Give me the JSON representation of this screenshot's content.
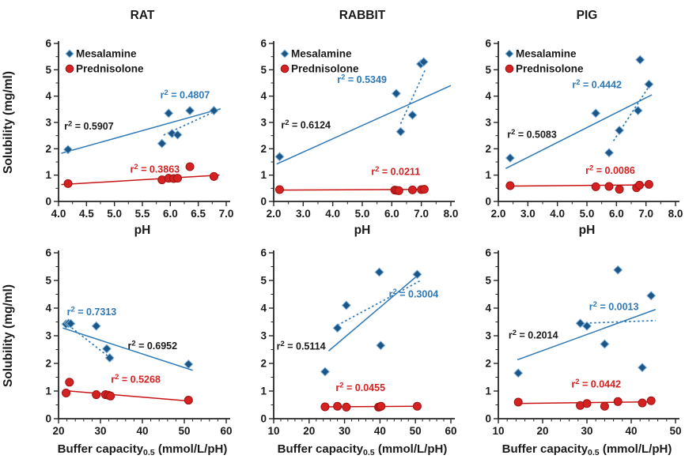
{
  "style": {
    "mesalamine_marker": "#1C5687",
    "mesalamine_marker_edge": "#7FB2DC",
    "mesalamine_line": "#2E79B8",
    "prednisolone_marker": "#D42222",
    "prednisolone_marker_edge": "#9E1212",
    "prednisolone_line": "#C81414",
    "annotation_black": "#1a1a1a",
    "axis_color": "#262626",
    "text_color": "#1a1a1a"
  },
  "chart_data": [
    {
      "type": "scatter",
      "title": "RAT",
      "xlabel": "pH",
      "ylabel": "Solubility (mg/ml)",
      "xlim": [
        4.0,
        7.0
      ],
      "xtick_vals": [
        4.0,
        4.5,
        5.0,
        5.5,
        6.0,
        6.5,
        7.0
      ],
      "xtick_labels": [
        "4.0",
        "4.5",
        "5.0",
        "5.5",
        "6.0",
        "6.5",
        "7.0"
      ],
      "x_minor_step": 0.25,
      "ylim": [
        0,
        6
      ],
      "ytick_vals": [
        0,
        1,
        2,
        3,
        4,
        5,
        6
      ],
      "ytick_labels": [
        "0",
        "1",
        "2",
        "3",
        "4",
        "5",
        "6"
      ],
      "y_minor_step": 0.5,
      "show_legend": true,
      "series": [
        {
          "name": "Mesalamine",
          "marker": "diamond",
          "color": "#1C5687",
          "edge": "#7FB2DC",
          "points": [
            [
              4.17,
              1.97
            ],
            [
              5.85,
              2.2
            ],
            [
              5.97,
              3.35
            ],
            [
              6.03,
              2.58
            ],
            [
              6.13,
              2.53
            ],
            [
              6.35,
              3.45
            ],
            [
              6.78,
              3.45
            ]
          ]
        },
        {
          "name": "Prednisolone",
          "marker": "circle",
          "color": "#D42222",
          "edge": "#9E1212",
          "points": [
            [
              4.17,
              0.68
            ],
            [
              5.85,
              0.82
            ],
            [
              5.97,
              0.88
            ],
            [
              6.06,
              0.87
            ],
            [
              6.13,
              0.88
            ],
            [
              6.35,
              1.32
            ],
            [
              6.78,
              0.95
            ]
          ]
        }
      ],
      "trendlines": [
        {
          "style": "solid",
          "color": "#2E79B8",
          "from": [
            4.05,
            1.83
          ],
          "to": [
            6.9,
            3.52
          ]
        },
        {
          "style": "dotted",
          "color": "#2E79B8",
          "from": [
            5.88,
            2.52
          ],
          "to": [
            6.88,
            3.5
          ]
        },
        {
          "style": "solid",
          "color": "#C81414",
          "from": [
            4.05,
            0.64
          ],
          "to": [
            6.88,
            1.0
          ]
        }
      ],
      "annotations": [
        {
          "text": "r² = 0.5907",
          "color": "#1a1a1a",
          "x": 4.1,
          "y": 2.73
        },
        {
          "text": "r² = 0.4807",
          "color": "#2E79B8",
          "x": 5.82,
          "y": 3.92
        },
        {
          "text": "r² = 0.3863",
          "color": "#D42222",
          "x": 5.28,
          "y": 1.1
        }
      ]
    },
    {
      "type": "scatter",
      "title": "RABBIT",
      "xlabel": "pH",
      "ylabel": "",
      "xlim": [
        2.0,
        8.0
      ],
      "xtick_vals": [
        2.0,
        3.0,
        4.0,
        5.0,
        6.0,
        7.0,
        8.0
      ],
      "xtick_labels": [
        "2.0",
        "3.0",
        "4.0",
        "5.0",
        "6.0",
        "7.0",
        "8.0"
      ],
      "x_minor_step": 0.5,
      "ylim": [
        0,
        6
      ],
      "ytick_vals": [
        0,
        1,
        2,
        3,
        4,
        5,
        6
      ],
      "ytick_labels": [
        "0",
        "1",
        "2",
        "3",
        "4",
        "5",
        "6"
      ],
      "y_minor_step": 0.5,
      "show_legend": true,
      "series": [
        {
          "name": "Mesalamine",
          "marker": "diamond",
          "color": "#1C5687",
          "edge": "#7FB2DC",
          "points": [
            [
              2.2,
              1.7
            ],
            [
              6.15,
              4.1
            ],
            [
              6.3,
              2.65
            ],
            [
              6.7,
              3.28
            ],
            [
              6.98,
              5.22
            ],
            [
              7.08,
              5.3
            ]
          ]
        },
        {
          "name": "Prednisolone",
          "marker": "circle",
          "color": "#D42222",
          "edge": "#9E1212",
          "points": [
            [
              2.2,
              0.45
            ],
            [
              6.1,
              0.43
            ],
            [
              6.17,
              0.42
            ],
            [
              6.24,
              0.41
            ],
            [
              6.7,
              0.44
            ],
            [
              7.0,
              0.45
            ],
            [
              7.1,
              0.46
            ]
          ]
        }
      ],
      "trendlines": [
        {
          "style": "solid",
          "color": "#2E79B8",
          "from": [
            2.1,
            1.42
          ],
          "to": [
            8.0,
            4.4
          ]
        },
        {
          "style": "dotted",
          "color": "#2E79B8",
          "from": [
            6.3,
            2.95
          ],
          "to": [
            7.15,
            5.05
          ]
        },
        {
          "style": "solid",
          "color": "#C81414",
          "from": [
            2.1,
            0.43
          ],
          "to": [
            7.15,
            0.46
          ]
        }
      ],
      "annotations": [
        {
          "text": "r² = 0.5349",
          "color": "#2E79B8",
          "x": 4.15,
          "y": 4.5
        },
        {
          "text": "r² = 0.6124",
          "color": "#1a1a1a",
          "x": 2.25,
          "y": 2.78
        },
        {
          "text": "r² = 0.0211",
          "color": "#D42222",
          "x": 5.3,
          "y": 1.0
        }
      ]
    },
    {
      "type": "scatter",
      "title": "PIG",
      "xlabel": "pH",
      "ylabel": "",
      "xlim": [
        2.0,
        8.0
      ],
      "xtick_vals": [
        2.0,
        3.0,
        4.0,
        5.0,
        6.0,
        7.0,
        8.0
      ],
      "xtick_labels": [
        "2.0",
        "3.0",
        "4.0",
        "5.0",
        "6.0",
        "7.0",
        "8.0"
      ],
      "x_minor_step": 0.5,
      "ylim": [
        0,
        6
      ],
      "ytick_vals": [
        0,
        1,
        2,
        3,
        4,
        5,
        6
      ],
      "ytick_labels": [
        "0",
        "1",
        "2",
        "3",
        "4",
        "5",
        "6"
      ],
      "y_minor_step": 0.5,
      "show_legend": true,
      "series": [
        {
          "name": "Mesalamine",
          "marker": "diamond",
          "color": "#1C5687",
          "edge": "#7FB2DC",
          "points": [
            [
              2.4,
              1.65
            ],
            [
              5.3,
              3.35
            ],
            [
              5.75,
              1.85
            ],
            [
              6.1,
              2.7
            ],
            [
              6.73,
              3.45
            ],
            [
              6.8,
              5.38
            ],
            [
              7.1,
              4.45
            ]
          ]
        },
        {
          "name": "Prednisolone",
          "marker": "circle",
          "color": "#D42222",
          "edge": "#9E1212",
          "points": [
            [
              2.4,
              0.6
            ],
            [
              5.3,
              0.56
            ],
            [
              5.75,
              0.57
            ],
            [
              6.1,
              0.46
            ],
            [
              6.68,
              0.52
            ],
            [
              6.78,
              0.62
            ],
            [
              7.1,
              0.65
            ]
          ]
        }
      ],
      "trendlines": [
        {
          "style": "solid",
          "color": "#2E79B8",
          "from": [
            2.25,
            1.25
          ],
          "to": [
            7.2,
            4.05
          ]
        },
        {
          "style": "dotted",
          "color": "#2E79B8",
          "from": [
            5.9,
            2.3
          ],
          "to": [
            7.08,
            4.33
          ]
        },
        {
          "style": "solid",
          "color": "#C81414",
          "from": [
            2.25,
            0.58
          ],
          "to": [
            7.2,
            0.63
          ]
        }
      ],
      "annotations": [
        {
          "text": "r² = 0.4442",
          "color": "#2E79B8",
          "x": 4.5,
          "y": 4.3
        },
        {
          "text": "r² = 0.5083",
          "color": "#1a1a1a",
          "x": 2.3,
          "y": 2.42
        },
        {
          "text": "r² = 0.0086",
          "color": "#D42222",
          "x": 4.95,
          "y": 1.05
        }
      ]
    },
    {
      "type": "scatter",
      "title": "",
      "xlabel": {
        "pre": "Buffer capacity",
        "sub": "0.5",
        "post": " (mmol/L/pH)"
      },
      "ylabel": "Solubility (mg/ml)",
      "xlim": [
        20,
        60
      ],
      "xtick_vals": [
        20,
        30,
        40,
        50,
        60
      ],
      "xtick_labels": [
        "20",
        "30",
        "40",
        "50",
        "60"
      ],
      "x_minor_step": 2,
      "ylim": [
        0,
        6
      ],
      "ytick_vals": [
        0,
        1,
        2,
        3,
        4,
        5,
        6
      ],
      "ytick_labels": [
        "0",
        "1",
        "2",
        "3",
        "4",
        "5",
        "6"
      ],
      "y_minor_step": 0.5,
      "show_legend": false,
      "series": [
        {
          "name": "Mesalamine",
          "marker": "diamond",
          "color": "#1C5687",
          "edge": "#7FB2DC",
          "points": [
            [
              21.8,
              3.42
            ],
            [
              22.4,
              3.45
            ],
            [
              22.9,
              3.44
            ],
            [
              29.0,
              3.35
            ],
            [
              31.5,
              2.53
            ],
            [
              32.2,
              2.2
            ],
            [
              51.0,
              1.97
            ]
          ]
        },
        {
          "name": "Prednisolone",
          "marker": "circle",
          "color": "#D42222",
          "edge": "#9E1212",
          "points": [
            [
              21.8,
              0.93
            ],
            [
              22.6,
              1.32
            ],
            [
              29.0,
              0.87
            ],
            [
              31.2,
              0.87
            ],
            [
              31.9,
              0.85
            ],
            [
              32.4,
              0.82
            ],
            [
              51.0,
              0.67
            ]
          ]
        }
      ],
      "trendlines": [
        {
          "style": "solid",
          "color": "#2E79B8",
          "from": [
            21.0,
            3.28
          ],
          "to": [
            52.0,
            1.75
          ]
        },
        {
          "style": "dotted",
          "color": "#2E79B8",
          "from": [
            21.5,
            3.48
          ],
          "to": [
            33.0,
            2.12
          ]
        },
        {
          "style": "solid",
          "color": "#C81414",
          "from": [
            21.0,
            1.02
          ],
          "to": [
            52.0,
            0.63
          ]
        }
      ],
      "annotations": [
        {
          "text": "r² = 0.7313",
          "color": "#2E79B8",
          "x": 22.0,
          "y": 3.75
        },
        {
          "text": "r² = 0.6952",
          "color": "#1a1a1a",
          "x": 36.5,
          "y": 2.52
        },
        {
          "text": "r² = 0.5268",
          "color": "#D42222",
          "x": 32.5,
          "y": 1.3
        }
      ]
    },
    {
      "type": "scatter",
      "title": "",
      "xlabel": {
        "pre": "Buffer capacity",
        "sub": "0.5",
        "post": " (mmol/L/pH)"
      },
      "ylabel": "",
      "xlim": [
        10,
        60
      ],
      "xtick_vals": [
        10,
        20,
        30,
        40,
        50,
        60
      ],
      "xtick_labels": [
        "10",
        "20",
        "30",
        "40",
        "50",
        "60"
      ],
      "x_minor_step": 2,
      "ylim": [
        0,
        6
      ],
      "ytick_vals": [
        0,
        1,
        2,
        3,
        4,
        5,
        6
      ],
      "ytick_labels": [
        "0",
        "1",
        "2",
        "3",
        "4",
        "5",
        "6"
      ],
      "y_minor_step": 0.5,
      "show_legend": false,
      "series": [
        {
          "name": "Mesalamine",
          "marker": "diamond",
          "color": "#1C5687",
          "edge": "#7FB2DC",
          "points": [
            [
              24.5,
              1.7
            ],
            [
              28.0,
              3.28
            ],
            [
              30.5,
              4.1
            ],
            [
              39.8,
              5.3
            ],
            [
              40.2,
              2.65
            ],
            [
              50.5,
              5.22
            ]
          ]
        },
        {
          "name": "Prednisolone",
          "marker": "circle",
          "color": "#D42222",
          "edge": "#9E1212",
          "points": [
            [
              24.5,
              0.43
            ],
            [
              28.0,
              0.45
            ],
            [
              30.5,
              0.42
            ],
            [
              39.6,
              0.42
            ],
            [
              39.9,
              0.43
            ],
            [
              40.3,
              0.45
            ],
            [
              50.5,
              0.45
            ]
          ]
        }
      ],
      "trendlines": [
        {
          "style": "solid",
          "color": "#2E79B8",
          "from": [
            25.5,
            2.45
          ],
          "to": [
            50.8,
            5.2
          ]
        },
        {
          "style": "dotted",
          "color": "#2E79B8",
          "from": [
            28.0,
            3.38
          ],
          "to": [
            51.5,
            5.0
          ]
        },
        {
          "style": "solid",
          "color": "#C81414",
          "from": [
            24.0,
            0.43
          ],
          "to": [
            51.0,
            0.45
          ]
        }
      ],
      "annotations": [
        {
          "text": "r² = 0.5114",
          "color": "#1a1a1a",
          "x": 10.8,
          "y": 2.5
        },
        {
          "text": "r² = 0.3004",
          "color": "#2E79B8",
          "x": 42.5,
          "y": 4.38
        },
        {
          "text": "r² = 0.0455",
          "color": "#D42222",
          "x": 27.5,
          "y": 1.0
        }
      ]
    },
    {
      "type": "scatter",
      "title": "",
      "xlabel": {
        "pre": "Buffer capacity",
        "sub": "0.5",
        "post": " (mmol/L/pH)"
      },
      "ylabel": "",
      "xlim": [
        10,
        50
      ],
      "xtick_vals": [
        10,
        20,
        30,
        40,
        50
      ],
      "xtick_labels": [
        "10",
        "20",
        "30",
        "40",
        "50"
      ],
      "x_minor_step": 2,
      "ylim": [
        0,
        6
      ],
      "ytick_vals": [
        0,
        1,
        2,
        3,
        4,
        5,
        6
      ],
      "ytick_labels": [
        "0",
        "1",
        "2",
        "3",
        "4",
        "5",
        "6"
      ],
      "y_minor_step": 0.5,
      "show_legend": false,
      "series": [
        {
          "name": "Mesalamine",
          "marker": "diamond",
          "color": "#1C5687",
          "edge": "#7FB2DC",
          "points": [
            [
              14.5,
              1.65
            ],
            [
              28.5,
              3.45
            ],
            [
              30.0,
              3.35
            ],
            [
              34.0,
              2.7
            ],
            [
              37.0,
              5.38
            ],
            [
              42.5,
              1.85
            ],
            [
              44.5,
              4.45
            ]
          ]
        },
        {
          "name": "Prednisolone",
          "marker": "circle",
          "color": "#D42222",
          "edge": "#9E1212",
          "points": [
            [
              14.5,
              0.6
            ],
            [
              28.5,
              0.48
            ],
            [
              30.0,
              0.55
            ],
            [
              34.0,
              0.45
            ],
            [
              37.0,
              0.62
            ],
            [
              42.5,
              0.57
            ],
            [
              44.5,
              0.65
            ]
          ]
        }
      ],
      "trendlines": [
        {
          "style": "solid",
          "color": "#2E79B8",
          "from": [
            14.3,
            2.13
          ],
          "to": [
            45.5,
            3.95
          ]
        },
        {
          "style": "dotted",
          "color": "#2E79B8",
          "from": [
            28.7,
            3.45
          ],
          "to": [
            45.5,
            3.55
          ]
        },
        {
          "style": "solid",
          "color": "#C81414",
          "from": [
            14.0,
            0.55
          ],
          "to": [
            45.2,
            0.61
          ]
        }
      ],
      "annotations": [
        {
          "text": "r² = 0.2014",
          "color": "#1a1a1a",
          "x": 12.3,
          "y": 2.9
        },
        {
          "text": "r² = 0.0013",
          "color": "#2E79B8",
          "x": 30.5,
          "y": 3.93
        },
        {
          "text": "r² = 0.0442",
          "color": "#D42222",
          "x": 26.5,
          "y": 1.13
        }
      ]
    }
  ]
}
